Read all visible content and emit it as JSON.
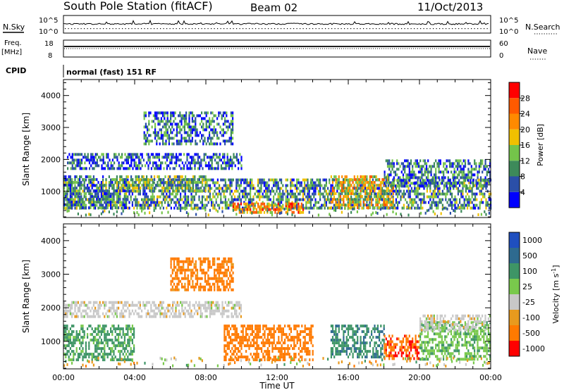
{
  "header": {
    "station": "South Pole Station (fitACF)",
    "beam": "Beam 02",
    "date": "11/Oct/2013"
  },
  "top_panels": {
    "nsky_label": "N.Sky",
    "nsearch_label": "N.Search",
    "nsky_ticks": [
      "10^5",
      "10^0"
    ],
    "nsearch_ticks": [
      "10^5",
      "10^0"
    ],
    "freq_label_1": "Freq.",
    "freq_label_2": "[MHz]",
    "freq_ticks": [
      "18",
      "8"
    ],
    "nave_label": "Nave",
    "nave_ticks": [
      "60",
      "0"
    ],
    "cpid_label": "CPID",
    "cpid_text": "normal (fast) 151 RF"
  },
  "colors": {
    "power_scale": [
      "#0000ff",
      "#2b4fa8",
      "#3d8a5a",
      "#74c44a",
      "#f0c000",
      "#ff8a00",
      "#ff5a00",
      "#ff0000"
    ],
    "velocity_scale": [
      "#1f4fbf",
      "#2e6a8f",
      "#3e9566",
      "#79c94c",
      "#c8c8c8",
      "#e89a1e",
      "#ff7a00",
      "#ff0000"
    ]
  },
  "chart_data": [
    {
      "type": "heatmap",
      "name": "power",
      "xlabel": "Time UT",
      "ylabel": "Slant Range [km]",
      "xlim": [
        0,
        24
      ],
      "ylim": [
        180,
        4500
      ],
      "x_tick_labels": [
        "00:00",
        "04:00",
        "08:00",
        "12:00",
        "16:00",
        "20:00",
        "00:00"
      ],
      "y_tick_labels": [
        "1000",
        "2000",
        "3000",
        "4000"
      ],
      "colorbar_label": "Power [dB]",
      "colorbar_ticks": [
        "4",
        "8",
        "12",
        "16",
        "20",
        "24",
        "28"
      ],
      "range": [
        0,
        32
      ],
      "bands": [
        {
          "t0": 0.0,
          "t1": 24.0,
          "r0": 450,
          "r1": 1400,
          "value": 10
        },
        {
          "t0": 0.2,
          "t1": 10.0,
          "r0": 1750,
          "r1": 2200,
          "value": 6
        },
        {
          "t0": 4.5,
          "t1": 9.5,
          "r0": 2500,
          "r1": 3500,
          "value": 8
        },
        {
          "t0": 3.5,
          "t1": 8.0,
          "r0": 1000,
          "r1": 1500,
          "value": 12
        },
        {
          "t0": 9.5,
          "t1": 13.5,
          "r0": 300,
          "r1": 650,
          "value": 22
        },
        {
          "t0": 15.0,
          "t1": 18.5,
          "r0": 500,
          "r1": 1500,
          "value": 18
        },
        {
          "t0": 18.0,
          "t1": 24.0,
          "r0": 1200,
          "r1": 2000,
          "value": 8
        },
        {
          "t0": 0.0,
          "t1": 3.5,
          "r0": 450,
          "r1": 1500,
          "value": 9
        }
      ]
    },
    {
      "type": "heatmap",
      "name": "velocity",
      "xlabel": "Time UT",
      "ylabel": "Slant Range [km]",
      "xlim": [
        0,
        24
      ],
      "ylim": [
        180,
        4500
      ],
      "x_tick_labels": [
        "00:00",
        "04:00",
        "08:00",
        "12:00",
        "16:00",
        "20:00",
        "00:00"
      ],
      "y_tick_labels": [
        "1000",
        "2000",
        "3000",
        "4000"
      ],
      "colorbar_label": "Velocity [m s",
      "colorbar_label_sup": "-1",
      "colorbar_label_end": "]",
      "colorbar_ticks": [
        "1000",
        "500",
        "100",
        "25",
        "-25",
        "-100",
        "-500",
        "-1000"
      ],
      "bands": [
        {
          "t0": 0.0,
          "t1": 10.0,
          "r0": 1750,
          "r1": 2200,
          "value": 0
        },
        {
          "t0": 6.0,
          "t1": 9.5,
          "r0": 2500,
          "r1": 3500,
          "value": -200
        },
        {
          "t0": 9.0,
          "t1": 14.0,
          "r0": 450,
          "r1": 1500,
          "value": -300
        },
        {
          "t0": 0.0,
          "t1": 4.0,
          "r0": 450,
          "r1": 1500,
          "value": 150
        },
        {
          "t0": 15.0,
          "t1": 18.0,
          "r0": 500,
          "r1": 1500,
          "value": 400
        },
        {
          "t0": 18.0,
          "t1": 20.0,
          "r0": 500,
          "r1": 1200,
          "value": -400
        },
        {
          "t0": 20.0,
          "t1": 24.0,
          "r0": 500,
          "r1": 1600,
          "value": 80
        },
        {
          "t0": 20.0,
          "t1": 24.0,
          "r0": 1300,
          "r1": 1800,
          "value": 0
        }
      ]
    }
  ]
}
